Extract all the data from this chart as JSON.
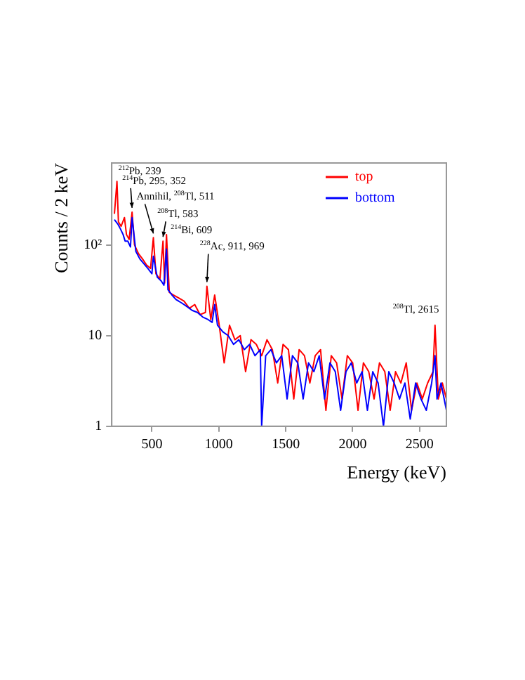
{
  "chart_data": {
    "type": "line",
    "xlabel": "Energy (keV)",
    "ylabel": "Counts / 2 keV",
    "log": "y",
    "xlim": [
      200,
      2700
    ],
    "xticks": [
      500,
      1000,
      1500,
      2000,
      2500
    ],
    "ylim": [
      1,
      800
    ],
    "yticks": [
      1,
      10,
      {
        "value": 100,
        "label": "10²"
      }
    ],
    "grid": false,
    "legend": "top right",
    "marker": "none",
    "series": [
      {
        "name": "top",
        "color": "#ff0000",
        "x": [
          220,
          239,
          250,
          270,
          295,
          310,
          330,
          352,
          370,
          400,
          430,
          460,
          490,
          511,
          530,
          560,
          583,
          595,
          609,
          630,
          660,
          700,
          740,
          780,
          820,
          860,
          900,
          911,
          940,
          969,
          1000,
          1040,
          1080,
          1120,
          1160,
          1200,
          1240,
          1280,
          1320,
          1360,
          1400,
          1440,
          1480,
          1520,
          1560,
          1600,
          1640,
          1680,
          1720,
          1760,
          1800,
          1840,
          1880,
          1920,
          1960,
          2000,
          2040,
          2080,
          2120,
          2160,
          2200,
          2240,
          2280,
          2320,
          2360,
          2400,
          2440,
          2480,
          2520,
          2560,
          2600,
          2615,
          2640,
          2670,
          2700
        ],
        "values": [
          220,
          500,
          180,
          160,
          200,
          130,
          115,
          230,
          100,
          80,
          70,
          60,
          55,
          120,
          48,
          42,
          110,
          38,
          130,
          30,
          28,
          26,
          24,
          20,
          22,
          17,
          18,
          35,
          15,
          28,
          14,
          5,
          13,
          9,
          10,
          4,
          9,
          8,
          6,
          9,
          7,
          3,
          8,
          7,
          2,
          7,
          6,
          3,
          6,
          7,
          1.5,
          6,
          5,
          2,
          6,
          5,
          1.5,
          5,
          4,
          2,
          5,
          4,
          1.5,
          4,
          3,
          5,
          1.5,
          3,
          2,
          3,
          4,
          13,
          2,
          3,
          2
        ]
      },
      {
        "name": "bottom",
        "color": "#0000ff",
        "x": [
          220,
          245,
          265,
          285,
          300,
          320,
          340,
          352,
          380,
          410,
          440,
          470,
          500,
          511,
          540,
          570,
          590,
          609,
          620,
          650,
          680,
          720,
          760,
          800,
          840,
          880,
          920,
          950,
          969,
          990,
          1030,
          1070,
          1110,
          1150,
          1190,
          1230,
          1270,
          1310,
          1320,
          1350,
          1390,
          1430,
          1470,
          1510,
          1550,
          1590,
          1630,
          1670,
          1710,
          1750,
          1790,
          1830,
          1870,
          1910,
          1950,
          1990,
          2030,
          2070,
          2110,
          2150,
          2190,
          2230,
          2270,
          2310,
          2350,
          2390,
          2430,
          2470,
          2510,
          2550,
          2590,
          2615,
          2630,
          2660,
          2700
        ],
        "values": [
          190,
          170,
          150,
          130,
          110,
          110,
          95,
          200,
          85,
          70,
          62,
          55,
          48,
          75,
          44,
          40,
          36,
          90,
          32,
          28,
          25,
          23,
          21,
          19,
          18,
          16,
          15,
          14,
          22,
          13,
          11,
          10,
          8,
          9,
          7,
          8,
          6,
          7,
          1,
          6,
          7,
          5,
          6,
          2,
          6,
          5,
          2,
          5,
          4,
          6,
          2,
          5,
          4,
          1.5,
          4,
          5,
          3,
          4,
          1.5,
          4,
          3,
          1,
          4,
          3,
          2,
          3,
          1.2,
          3,
          2,
          1.5,
          3,
          6,
          2,
          3,
          1.5
        ]
      }
    ],
    "annotations": [
      {
        "text": "$^{212}$Pb, 239",
        "x": 239,
        "y": 500
      },
      {
        "text": "$^{214}$Pb, 295, 352",
        "x": 352,
        "y": 230
      },
      {
        "text": "Annihil, $^{208}$Tl, 511",
        "x": 511,
        "y": 120
      },
      {
        "text": "$^{208}$Tl, 583",
        "x": 583,
        "y": 110
      },
      {
        "text": "$^{214}$Bi, 609",
        "x": 609,
        "y": 90
      },
      {
        "text": "$^{228}$Ac, 911, 969",
        "x": 911,
        "y": 35
      },
      {
        "text": "$^{208}$Tl, 2615",
        "x": 2615,
        "y": 13
      }
    ]
  }
}
